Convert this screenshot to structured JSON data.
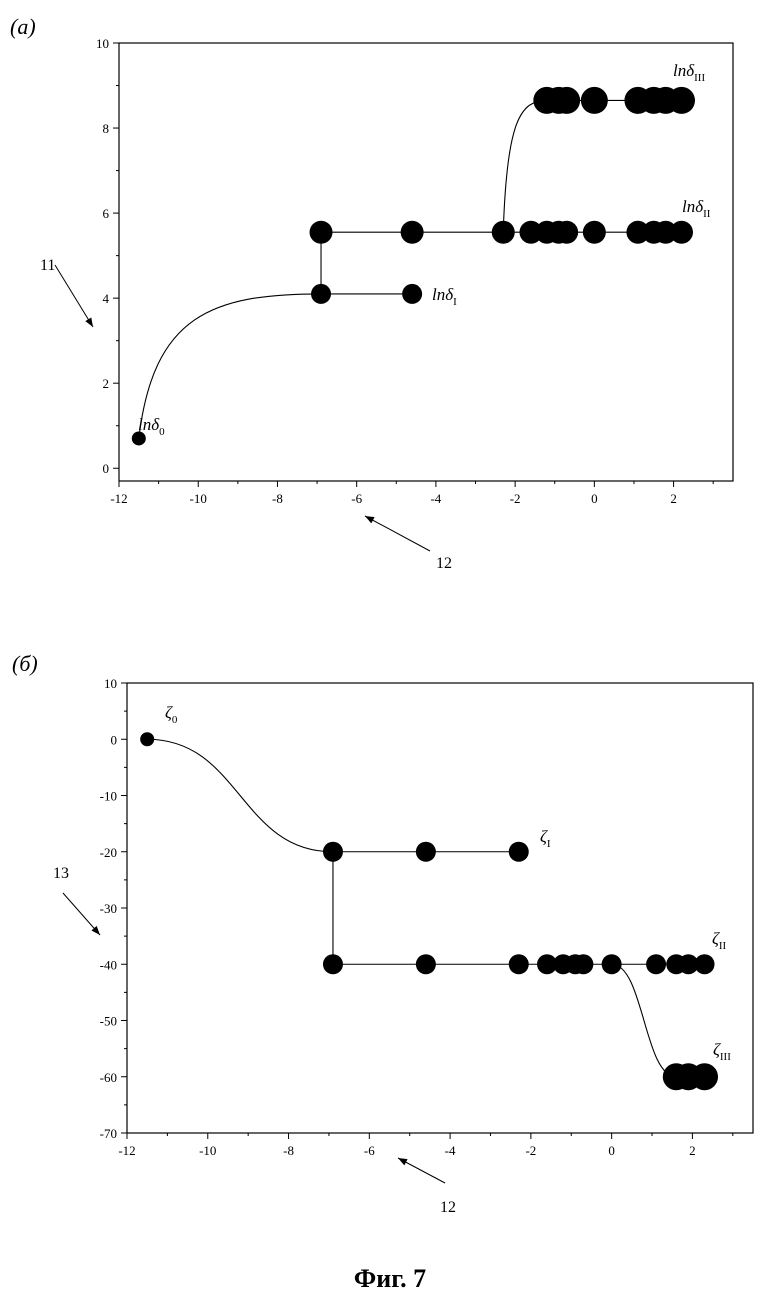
{
  "caption": "Фиг. 7",
  "chart_data": [
    {
      "panel": "(а)",
      "type": "scatter",
      "xlim": [
        -12,
        3.5
      ],
      "ylim": [
        -0.3,
        10
      ],
      "xticks": [
        -12,
        -10,
        -8,
        -6,
        -4,
        -2,
        0,
        2
      ],
      "yticks": [
        0,
        2,
        4,
        6,
        8,
        10
      ],
      "pointers": [
        {
          "label": "11",
          "target": "y-axis"
        },
        {
          "label": "12",
          "target": "x-axis"
        }
      ],
      "series": [
        {
          "label": "lnδ",
          "label_sub": "0",
          "x": [
            -11.5
          ],
          "y": [
            0.7
          ],
          "size": "small"
        },
        {
          "label": "lnδ",
          "label_sub": "I",
          "x": [
            -6.9,
            -4.6
          ],
          "y": [
            4.1,
            4.1
          ],
          "size": "medium"
        },
        {
          "label": "lnδ",
          "label_sub": "II",
          "x": [
            -6.9,
            -4.6,
            -2.3,
            -1.6,
            -1.2,
            -0.9,
            -0.7,
            0.0,
            1.1,
            1.5,
            1.8,
            2.2
          ],
          "y": [
            5.55,
            5.55,
            5.55,
            5.55,
            5.55,
            5.55,
            5.55,
            5.55,
            5.55,
            5.55,
            5.55,
            5.55
          ],
          "size": "large"
        },
        {
          "label": "lnδ",
          "label_sub": "III",
          "x": [
            -1.2,
            -0.9,
            -0.7,
            0.0,
            1.1,
            1.5,
            1.8,
            2.2
          ],
          "y": [
            8.65,
            8.65,
            8.65,
            8.65,
            8.65,
            8.65,
            8.65,
            8.65
          ],
          "size": "xlarge"
        }
      ],
      "connectors": [
        {
          "type": "curve",
          "from": [
            -11.5,
            0.7
          ],
          "to": [
            -6.9,
            4.1
          ]
        },
        {
          "type": "line",
          "from": [
            -6.9,
            4.1
          ],
          "to": [
            -4.6,
            4.1
          ]
        },
        {
          "type": "line",
          "from": [
            -6.9,
            4.1
          ],
          "to": [
            -6.9,
            5.55
          ]
        },
        {
          "type": "line",
          "from": [
            -6.9,
            5.55
          ],
          "to": [
            2.2,
            5.55
          ]
        },
        {
          "type": "curve",
          "from": [
            -2.3,
            5.55
          ],
          "to": [
            -1.2,
            8.65
          ]
        },
        {
          "type": "line",
          "from": [
            -1.2,
            8.65
          ],
          "to": [
            2.2,
            8.65
          ]
        }
      ]
    },
    {
      "panel": "(б)",
      "type": "scatter",
      "xlim": [
        -12,
        3.5
      ],
      "ylim": [
        -70,
        10
      ],
      "xticks": [
        -12,
        -10,
        -8,
        -6,
        -4,
        -2,
        0,
        2
      ],
      "yticks": [
        10,
        0,
        -10,
        -20,
        -30,
        -40,
        -50,
        -60,
        -70
      ],
      "pointers": [
        {
          "label": "13",
          "target": "y-axis"
        },
        {
          "label": "12",
          "target": "x-axis"
        }
      ],
      "series": [
        {
          "label": "ζ",
          "label_sub": "0",
          "x": [
            -11.5
          ],
          "y": [
            0
          ],
          "size": "small"
        },
        {
          "label": "ζ",
          "label_sub": "I",
          "x": [
            -6.9,
            -4.6,
            -2.3
          ],
          "y": [
            -20,
            -20,
            -20
          ],
          "size": "medium"
        },
        {
          "label": "ζ",
          "label_sub": "II",
          "x": [
            -6.9,
            -4.6,
            -2.3,
            -1.6,
            -1.2,
            -0.9,
            -0.7,
            0.0,
            1.1,
            1.6,
            1.9,
            2.3
          ],
          "y": [
            -40,
            -40,
            -40,
            -40,
            -40,
            -40,
            -40,
            -40,
            -40,
            -40,
            -40,
            -40
          ],
          "size": "medium"
        },
        {
          "label": "ζ",
          "label_sub": "III",
          "x": [
            1.6,
            1.9,
            2.3
          ],
          "y": [
            -60,
            -60,
            -60
          ],
          "size": "xlarge"
        }
      ],
      "connectors": [
        {
          "type": "curve",
          "from": [
            -11.5,
            0
          ],
          "to": [
            -6.9,
            -20
          ]
        },
        {
          "type": "line",
          "from": [
            -6.9,
            -20
          ],
          "to": [
            -2.3,
            -20
          ]
        },
        {
          "type": "line",
          "from": [
            -6.9,
            -20
          ],
          "to": [
            -6.9,
            -40
          ]
        },
        {
          "type": "line",
          "from": [
            -6.9,
            -40
          ],
          "to": [
            2.3,
            -40
          ]
        },
        {
          "type": "curve",
          "from": [
            0.0,
            -40
          ],
          "to": [
            1.6,
            -60
          ]
        },
        {
          "type": "line",
          "from": [
            1.6,
            -60
          ],
          "to": [
            2.3,
            -60
          ]
        }
      ]
    }
  ]
}
